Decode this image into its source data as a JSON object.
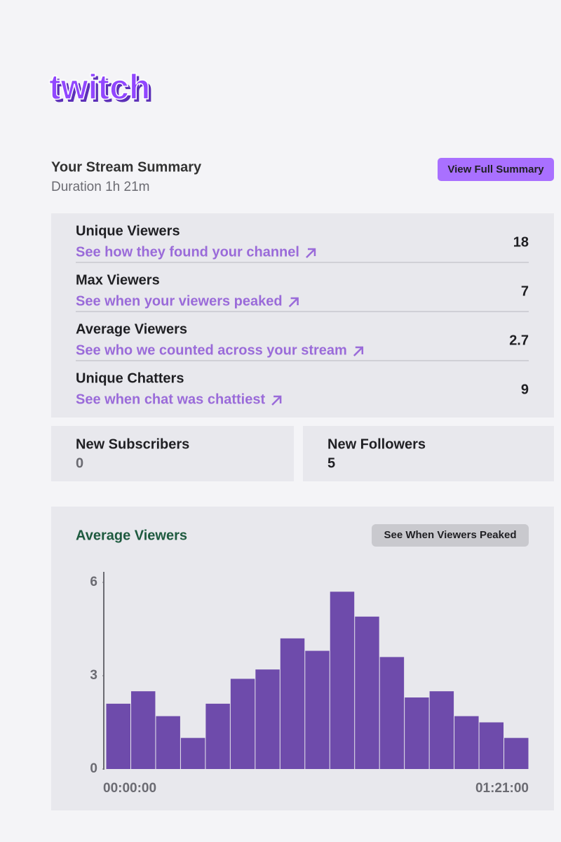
{
  "logo": "twitch",
  "summary": {
    "title": "Your Stream Summary",
    "duration": "Duration 1h 21m",
    "button": "View Full Summary"
  },
  "stats": [
    {
      "label": "Unique Viewers",
      "link": "See how they found your channel",
      "value": 18
    },
    {
      "label": "Max Viewers",
      "link": "See when your viewers peaked",
      "value": 7
    },
    {
      "label": "Average Viewers",
      "link": "See who we counted across your stream",
      "value": 2.7
    },
    {
      "label": "Unique Chatters",
      "link": "See when chat was chattiest",
      "value": 9
    }
  ],
  "cards": [
    {
      "label": "New Subscribers",
      "value": 0
    },
    {
      "label": "New Followers",
      "value": 5
    }
  ],
  "chart_data": {
    "type": "bar",
    "title": "Average Viewers",
    "button": "See When Viewers Peaked",
    "categories": [
      "00:00:00",
      null,
      null,
      null,
      null,
      null,
      null,
      null,
      null,
      null,
      null,
      null,
      null,
      null,
      null,
      null,
      "01:21:00"
    ],
    "values": [
      2.1,
      2.5,
      1.7,
      1.0,
      2.1,
      2.9,
      3.2,
      4.2,
      3.8,
      5.7,
      4.9,
      3.6,
      2.3,
      2.5,
      1.7,
      1.5,
      1.0
    ],
    "color": "#6e4bab",
    "ylim": [
      0,
      6
    ],
    "yticks": [
      0,
      3,
      6
    ],
    "grid": false
  }
}
